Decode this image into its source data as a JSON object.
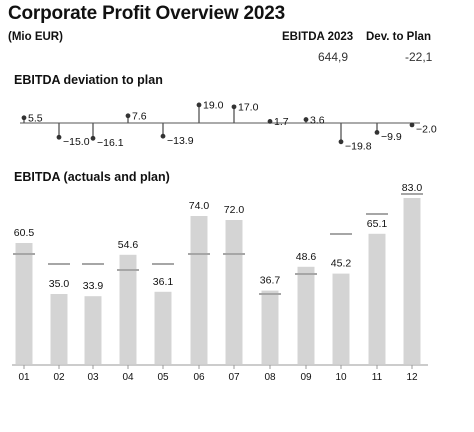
{
  "header": {
    "title": "Corporate Profit Overview 2023",
    "unit": "(Mio EUR)",
    "kpis": [
      {
        "label": "EBITDA 2023",
        "value": "644,9"
      },
      {
        "label": "Dev. to Plan",
        "value": "-22,1"
      }
    ]
  },
  "sections": {
    "deviation_title": "EBITDA deviation to plan",
    "actuals_title": "EBITDA (actuals and plan)"
  },
  "colors": {
    "bar": "#d4d4d4",
    "plan": "#a6a6a6",
    "stem": "#555555",
    "axis": "#9a9a9a",
    "text": "#111111"
  },
  "chart_data": [
    {
      "type": "lollipop",
      "title": "EBITDA deviation to plan",
      "categories": [
        "01",
        "02",
        "03",
        "04",
        "05",
        "06",
        "07",
        "08",
        "09",
        "10",
        "11",
        "12"
      ],
      "values": [
        5.5,
        -15.0,
        -16.1,
        7.6,
        -13.9,
        19.0,
        17.0,
        1.7,
        3.6,
        -19.8,
        -9.9,
        -2.0
      ],
      "labels": [
        "5.5",
        "−15.0",
        "−16.1",
        "7.6",
        "−13.9",
        "19.0",
        "17.0",
        "1.7",
        "3.6",
        "−19.8",
        "−9.9",
        "−2.0"
      ]
    },
    {
      "type": "bar",
      "title": "EBITDA (actuals and plan)",
      "categories": [
        "01",
        "02",
        "03",
        "04",
        "05",
        "06",
        "07",
        "08",
        "09",
        "10",
        "11",
        "12"
      ],
      "series": [
        {
          "values": [
            60.5,
            35.0,
            33.9,
            54.6,
            36.1,
            74.0,
            72.0,
            36.7,
            48.6,
            45.2,
            65.1,
            83.0
          ]
        },
        {
          "values": [
            55.0,
            50.0,
            50.0,
            47.0,
            50.0,
            55.0,
            55.0,
            35.0,
            45.0,
            65.0,
            75.0,
            85.0
          ]
        }
      ],
      "labels": [
        "60.5",
        "35.0",
        "33.9",
        "54.6",
        "36.1",
        "74.0",
        "72.0",
        "36.7",
        "48.6",
        "45.2",
        "65.1",
        "83.0"
      ],
      "ylim": [
        0,
        90
      ]
    }
  ]
}
